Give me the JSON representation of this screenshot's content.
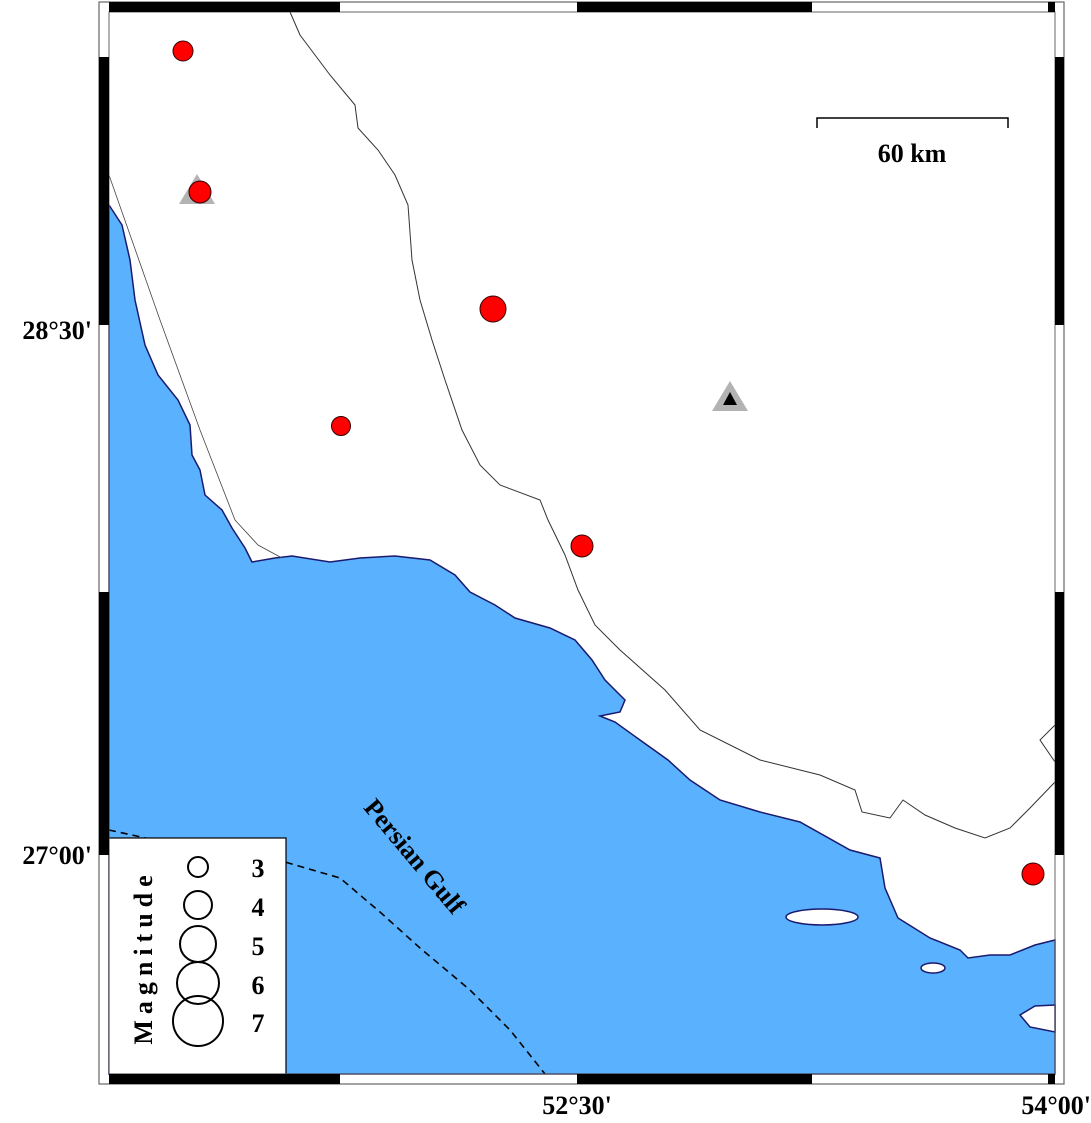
{
  "map": {
    "colors": {
      "sea": "#5ab1fd",
      "land": "#ffffff",
      "coast": "#1a1a6e",
      "event": "#ff0000",
      "station": "#b3b3b3",
      "station_inner": "#000000"
    },
    "lat_labels": [
      "28°30'",
      "27°00'"
    ],
    "lon_labels": [
      "52°30'",
      "54°00'"
    ],
    "water_label": "Persian Gulf",
    "scale_bar": {
      "label": "60 km"
    },
    "events": [
      {
        "lon_lat_approx": "NW"
      },
      {
        "lon_lat_approx": "NW2"
      },
      {
        "lon_lat_approx": "C"
      },
      {
        "lon_lat_approx": "W"
      },
      {
        "lon_lat_approx": "S"
      },
      {
        "lon_lat_approx": "SE"
      }
    ],
    "stations": 2,
    "legend": {
      "title": "Magnitude",
      "items": [
        "3",
        "4",
        "5",
        "6",
        "7"
      ]
    }
  }
}
